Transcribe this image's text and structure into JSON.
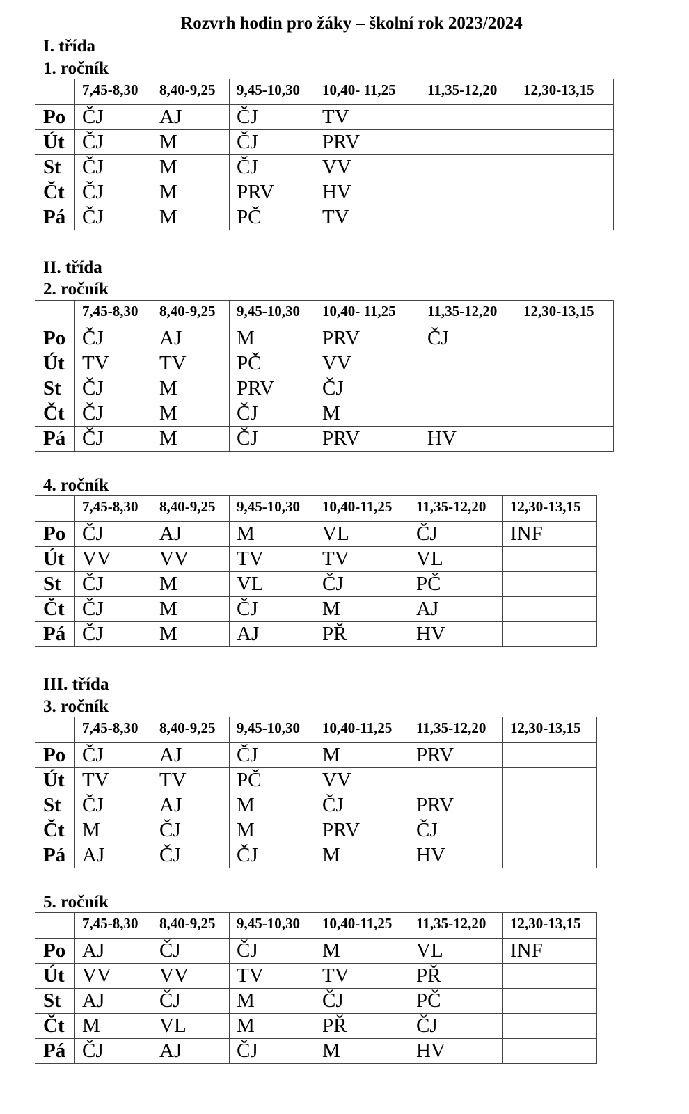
{
  "title": "Rozvrh hodin pro žáky – školní rok 2023/2024",
  "days": [
    "Po",
    "Út",
    "St",
    "Čt",
    "Pá"
  ],
  "sections": [
    {
      "class_label": "I. třída",
      "grade_label": "1. ročník",
      "times": [
        "7,45-8,30",
        "8,40-9,25",
        "9,45-10,30",
        "10,40- 11,25",
        "11,35-12,20",
        "12,30-13,15"
      ],
      "rows": [
        [
          "ČJ",
          "AJ",
          "ČJ",
          "TV",
          "",
          ""
        ],
        [
          "ČJ",
          "M",
          "ČJ",
          "PRV",
          "",
          ""
        ],
        [
          "ČJ",
          "M",
          "ČJ",
          "VV",
          "",
          ""
        ],
        [
          "ČJ",
          "M",
          "PRV",
          "HV",
          "",
          ""
        ],
        [
          "ČJ",
          "M",
          "PČ",
          "TV",
          "",
          ""
        ]
      ]
    },
    {
      "class_label": "II. třída",
      "grade_label": "2. ročník",
      "times": [
        "7,45-8,30",
        "8,40-9,25",
        "9,45-10,30",
        "10,40- 11,25",
        "11,35-12,20",
        "12,30-13,15"
      ],
      "rows": [
        [
          "ČJ",
          "AJ",
          "M",
          "PRV",
          "ČJ",
          ""
        ],
        [
          "TV",
          "TV",
          "PČ",
          "VV",
          "",
          ""
        ],
        [
          "ČJ",
          "M",
          "PRV",
          "ČJ",
          "",
          ""
        ],
        [
          "ČJ",
          "M",
          "ČJ",
          "M",
          "",
          ""
        ],
        [
          "ČJ",
          "M",
          "ČJ",
          "PRV",
          "HV",
          ""
        ]
      ]
    },
    {
      "class_label": "",
      "grade_label": "4. ročník",
      "times": [
        "7,45-8,30",
        "8,40-9,25",
        "9,45-10,30",
        "10,40-11,25",
        "11,35-12,20",
        "12,30-13,15"
      ],
      "rows": [
        [
          "ČJ",
          "AJ",
          "M",
          "VL",
          "ČJ",
          "INF"
        ],
        [
          "VV",
          "VV",
          "TV",
          "TV",
          "VL",
          ""
        ],
        [
          "ČJ",
          "M",
          "VL",
          "ČJ",
          "PČ",
          ""
        ],
        [
          "ČJ",
          "M",
          "ČJ",
          "M",
          "AJ",
          ""
        ],
        [
          "ČJ",
          "M",
          "AJ",
          "PŘ",
          "HV",
          ""
        ]
      ]
    },
    {
      "class_label": "III. třída",
      "grade_label": "3. ročník",
      "times": [
        "7,45-8,30",
        "8,40-9,25",
        "9,45-10,30",
        "10,40-11,25",
        "11,35-12,20",
        "12,30-13,15"
      ],
      "rows": [
        [
          "ČJ",
          "AJ",
          "ČJ",
          "M",
          "PRV",
          ""
        ],
        [
          "TV",
          "TV",
          "PČ",
          "VV",
          "",
          ""
        ],
        [
          "ČJ",
          "AJ",
          "M",
          "ČJ",
          "PRV",
          ""
        ],
        [
          "M",
          "ČJ",
          "M",
          "PRV",
          "ČJ",
          ""
        ],
        [
          "AJ",
          "ČJ",
          "ČJ",
          "M",
          "HV",
          ""
        ]
      ]
    },
    {
      "class_label": "",
      "grade_label": "5. ročník",
      "times": [
        "7,45-8,30",
        "8,40-9,25",
        "9,45-10,30",
        "10,40-11,25",
        "11,35-12,20",
        "12,30-13,15"
      ],
      "rows": [
        [
          "AJ",
          "ČJ",
          "ČJ",
          "M",
          "VL",
          "INF"
        ],
        [
          "VV",
          "VV",
          "TV",
          "TV",
          "PŘ",
          ""
        ],
        [
          "AJ",
          "ČJ",
          "M",
          "ČJ",
          "PČ",
          ""
        ],
        [
          "M",
          "VL",
          "M",
          "PŘ",
          "ČJ",
          ""
        ],
        [
          "ČJ",
          "AJ",
          "ČJ",
          "M",
          "HV",
          ""
        ]
      ]
    }
  ]
}
